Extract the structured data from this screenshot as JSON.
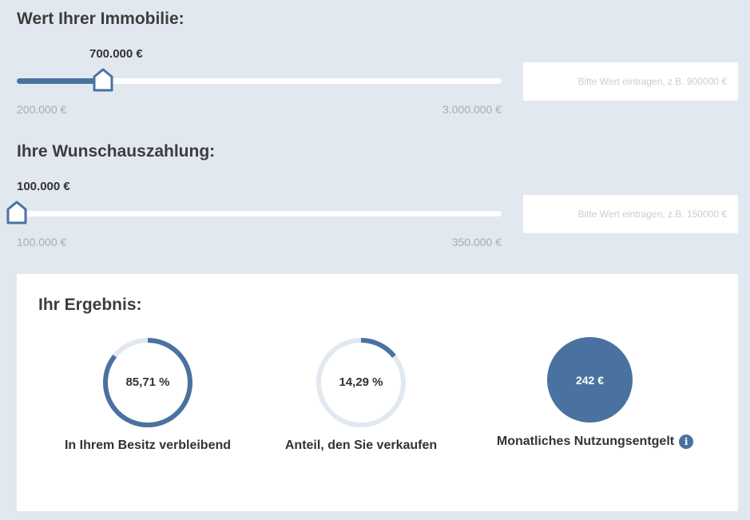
{
  "property": {
    "title": "Wert Ihrer Immobilie:",
    "value_label": "700.000 €",
    "min_label": "200.000 €",
    "max_label": "3.000.000 €",
    "slider_fraction": 0.178,
    "input_placeholder": "Bitte Wert eintragen, z.B. 900000 €"
  },
  "payout": {
    "title": "Ihre Wunschauszahlung:",
    "value_label": "100.000 €",
    "min_label": "100.000 €",
    "max_label": "350.000 €",
    "slider_fraction": 0,
    "input_placeholder": "Bitte Wert eintragen, z.B. 150000 €"
  },
  "result": {
    "title": "Ihr Ergebnis:",
    "retained": {
      "value_label": "85,71 %",
      "fraction": 0.8571,
      "caption": "In Ihrem Besitz verbleibend"
    },
    "sold": {
      "value_label": "14,29 %",
      "fraction": 0.1429,
      "caption": "Anteil, den Sie verkaufen"
    },
    "fee": {
      "value_label": "242 €",
      "caption": "Monatliches Nutzungsentgelt",
      "info_icon": "i"
    }
  },
  "colors": {
    "accent": "#4a72a0",
    "ring_track": "#e2e8f0",
    "background": "#e2e8f0"
  }
}
